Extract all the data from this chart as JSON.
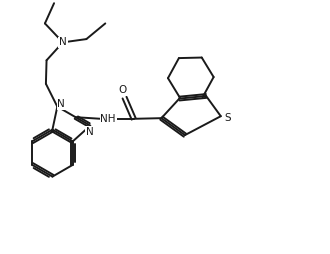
{
  "bg_color": "#ffffff",
  "line_color": "#1a1a1a",
  "line_width": 1.4,
  "figsize": [
    3.3,
    2.54
  ],
  "dpi": 100,
  "xlim": [
    0,
    10
  ],
  "ylim": [
    0,
    7.7
  ]
}
